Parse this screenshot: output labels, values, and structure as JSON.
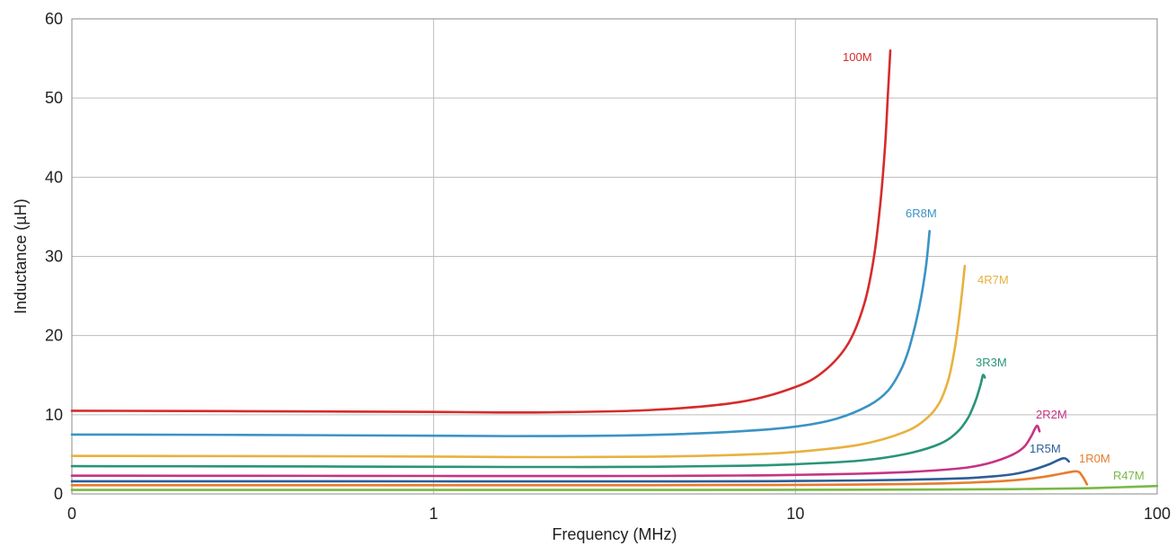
{
  "chart_data": {
    "type": "line",
    "xlabel": "Frequency (MHz)",
    "ylabel": "Inductance (µH)",
    "x_scale": "log",
    "xlim": [
      0.1,
      100
    ],
    "ylim": [
      0,
      60
    ],
    "grid": true,
    "x_tick_labels": [
      "0",
      "1",
      "10",
      "100"
    ],
    "y_tick_labels": [
      "0",
      "10",
      "20",
      "30",
      "40",
      "50",
      "60"
    ],
    "series": [
      {
        "name": "100M",
        "color": "#d62b2b",
        "x": [
          0.1,
          0.3,
          1,
          2,
          4,
          7,
          10,
          12,
          14,
          15.5,
          16.5,
          17.2,
          17.7,
          18.0,
          18.3
        ],
        "y": [
          10.5,
          10.45,
          10.35,
          10.3,
          10.6,
          11.6,
          13.5,
          15.5,
          19,
          24,
          30,
          37,
          44,
          50,
          56
        ]
      },
      {
        "name": "6R8M",
        "color": "#3a93c5",
        "x": [
          0.1,
          0.3,
          1,
          2,
          4,
          7,
          10,
          13,
          16,
          18,
          19.5,
          20.5,
          21.5,
          22.3,
          23.0,
          23.5
        ],
        "y": [
          7.5,
          7.45,
          7.35,
          7.3,
          7.45,
          7.9,
          8.5,
          9.5,
          11.2,
          13,
          15.5,
          18,
          21.5,
          25,
          29,
          33.2
        ]
      },
      {
        "name": "4R7M",
        "color": "#e8b13f",
        "x": [
          0.1,
          0.3,
          1,
          2,
          4,
          7,
          10,
          15,
          20,
          23,
          25,
          26.5,
          27.5,
          28.3,
          28.9,
          29.4
        ],
        "y": [
          4.8,
          4.78,
          4.72,
          4.65,
          4.7,
          4.95,
          5.3,
          6.2,
          7.8,
          9.5,
          11.5,
          14.5,
          18,
          22,
          25.5,
          28.8
        ]
      },
      {
        "name": "3R3M",
        "color": "#2a9478",
        "x": [
          0.1,
          0.3,
          1,
          2,
          4,
          7,
          10,
          15,
          20,
          25,
          28,
          30,
          31.5,
          32.5,
          33.0,
          33.4
        ],
        "y": [
          3.5,
          3.48,
          3.42,
          3.4,
          3.42,
          3.55,
          3.75,
          4.2,
          5,
          6.3,
          7.8,
          9.6,
          11.8,
          13.8,
          15,
          14.7
        ]
      },
      {
        "name": "2R2M",
        "color": "#c63383",
        "x": [
          0.1,
          0.3,
          1,
          2,
          4,
          7,
          10,
          15,
          20,
          25,
          30,
          35,
          40,
          43,
          45,
          46.5,
          47.3
        ],
        "y": [
          2.3,
          2.29,
          2.27,
          2.26,
          2.27,
          2.32,
          2.4,
          2.55,
          2.75,
          3,
          3.35,
          4,
          5,
          6,
          7.4,
          8.6,
          7.9
        ]
      },
      {
        "name": "1R5M",
        "color": "#2b5e98",
        "x": [
          0.1,
          0.3,
          1,
          2,
          4,
          7,
          10,
          15,
          20,
          25,
          30,
          35,
          40,
          45,
          50,
          55,
          57
        ],
        "y": [
          1.6,
          1.6,
          1.59,
          1.58,
          1.58,
          1.6,
          1.63,
          1.7,
          1.78,
          1.88,
          2.0,
          2.2,
          2.5,
          3.0,
          3.7,
          4.5,
          4.1
        ]
      },
      {
        "name": "1R0M",
        "color": "#e87c2c",
        "x": [
          0.1,
          0.3,
          1,
          2,
          4,
          7,
          10,
          15,
          20,
          25,
          30,
          35,
          40,
          45,
          50,
          55,
          60,
          62,
          64
        ],
        "y": [
          1.1,
          1.1,
          1.1,
          1.1,
          1.1,
          1.12,
          1.14,
          1.18,
          1.24,
          1.32,
          1.42,
          1.55,
          1.72,
          1.95,
          2.25,
          2.6,
          2.85,
          2.3,
          1.2
        ]
      },
      {
        "name": "R47M",
        "color": "#7ab845",
        "x": [
          0.1,
          0.3,
          1,
          3,
          10,
          20,
          40,
          60,
          80,
          100
        ],
        "y": [
          0.5,
          0.5,
          0.5,
          0.5,
          0.52,
          0.55,
          0.6,
          0.7,
          0.85,
          1.0
        ]
      }
    ]
  }
}
